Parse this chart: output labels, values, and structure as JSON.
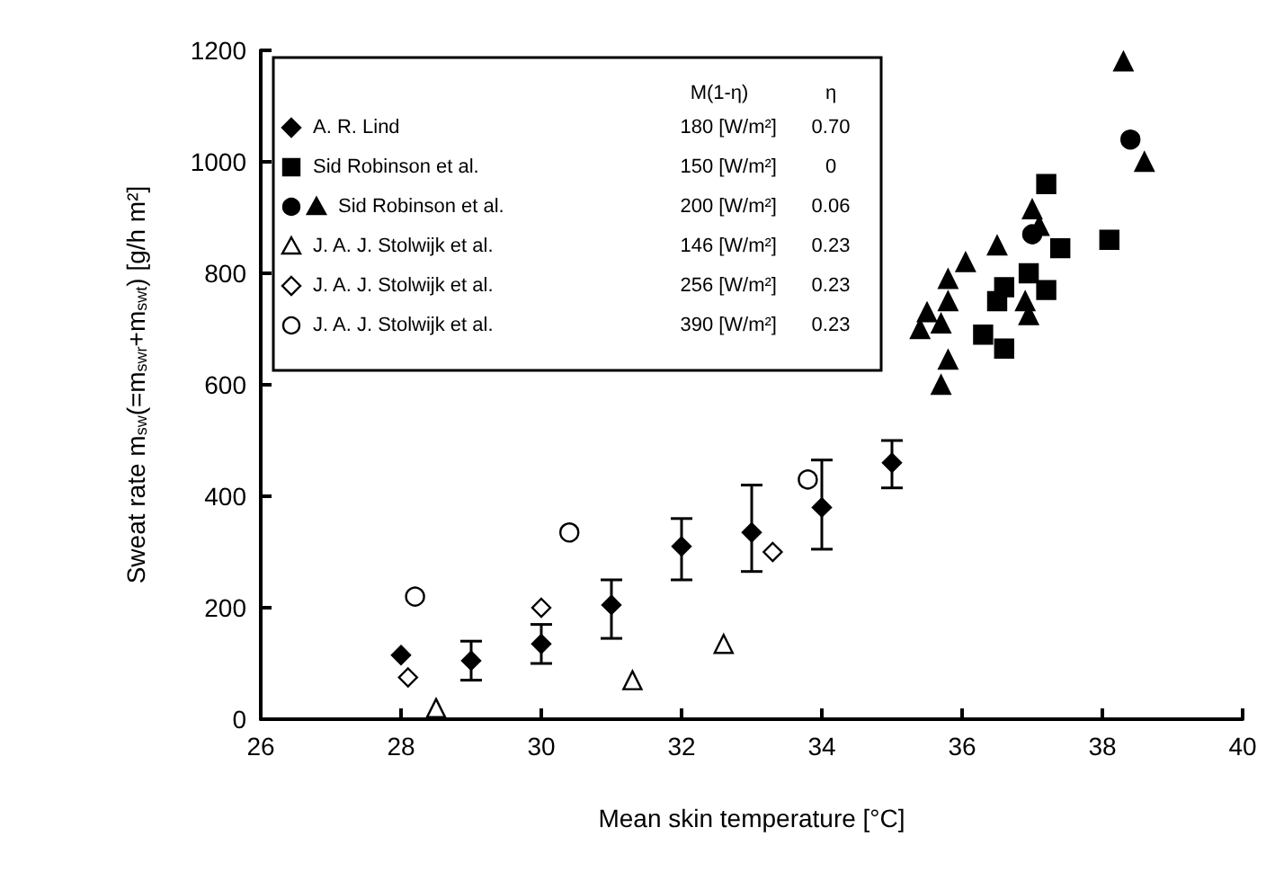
{
  "chart_data": {
    "type": "scatter",
    "xlabel": "Mean skin temperature [°C]",
    "ylabel": "Sweat rate m$_{sw}$(=m$_{swr}$+m$_{swt}$) [g/h m²]",
    "xlim": [
      26,
      40
    ],
    "xticks": [
      26,
      28,
      30,
      32,
      34,
      36,
      38,
      40
    ],
    "ylim": [
      0,
      1200
    ],
    "yticks": [
      0,
      200,
      400,
      600,
      800,
      1000,
      1200
    ],
    "grid": false,
    "legend": "top left",
    "annotations": [
      "M(1-η)",
      "η",
      "180 [W/m²]",
      "0.70",
      "150 [W/m²]",
      "0",
      "200 [W/m²]",
      "0.06",
      "146 [W/m²]",
      "0.23",
      "256 [W/m²]",
      "0.23",
      "390 [W/m²]",
      "0.23"
    ],
    "series": [
      {
        "name": "A. R. Lind",
        "color": "#000000",
        "marker": "diamond",
        "x": [
          28,
          29,
          30,
          31,
          32,
          33,
          34,
          35
        ],
        "values": [
          115,
          105,
          135,
          205,
          310,
          335,
          380,
          460
        ],
        "errors": [
          null,
          [
            70,
            140
          ],
          [
            100,
            170
          ],
          [
            145,
            250
          ],
          [
            250,
            360
          ],
          [
            265,
            420
          ],
          [
            305,
            465
          ],
          [
            415,
            500
          ]
        ]
      },
      {
        "name": "Sid Robinson et al.",
        "color": "#000000",
        "marker": "square",
        "x": [
          37.2,
          37.4,
          36.95,
          37.2,
          36.6,
          36.5,
          36.3,
          36.6,
          38.1
        ],
        "values": [
          960,
          845,
          800,
          770,
          775,
          750,
          690,
          665,
          860
        ]
      },
      {
        "color": "#000000",
        "marker": "circle",
        "x": [
          38.4,
          37.0
        ],
        "values": [
          1040,
          870
        ]
      },
      {
        "name": "Sid Robinson et al.",
        "color": "#000000",
        "marker": "triangle",
        "x": [
          37.0,
          37.1,
          36.5,
          36.05,
          35.8,
          35.8,
          35.5,
          35.4,
          35.7,
          36.9,
          36.95,
          35.8,
          35.7,
          38.3,
          38.6
        ],
        "values": [
          915,
          885,
          850,
          820,
          790,
          750,
          730,
          700,
          710,
          750,
          725,
          645,
          600,
          1180,
          1000
        ]
      },
      {
        "name": "J. A. J. Stolwijk et al.",
        "color": "#ffffff",
        "marker": "triangle",
        "x": [
          28.5,
          31.3,
          32.6
        ],
        "values": [
          20,
          70,
          135
        ]
      },
      {
        "name": "J. A. J. Stolwijk et al.",
        "color": "#ffffff",
        "marker": "diamond",
        "x": [
          28.1,
          30,
          33.3
        ],
        "values": [
          75,
          200,
          300
        ]
      },
      {
        "name": "J. A. J. Stolwijk et al.",
        "color": "#ffffff",
        "marker": "circle",
        "x": [
          28.2,
          30.4,
          33.8
        ],
        "values": [
          220,
          335,
          430
        ]
      }
    ]
  }
}
